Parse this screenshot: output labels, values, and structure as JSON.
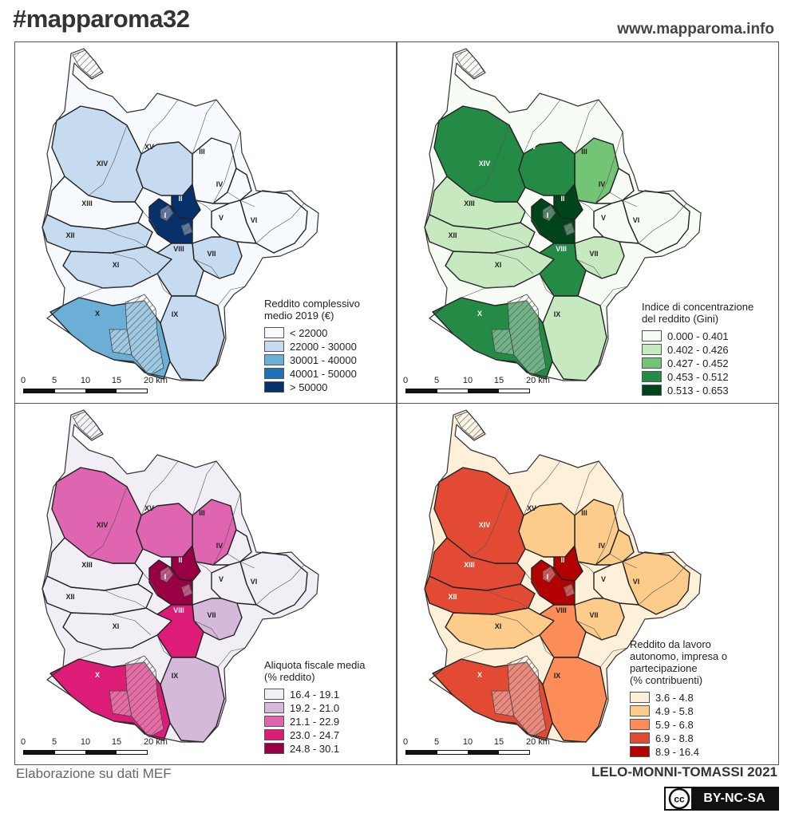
{
  "header": {
    "hashtag": "#mapparoma32",
    "website": "www.mapparoma.info"
  },
  "footer": {
    "source": "Elaborazione su dati MEF",
    "authors": "LELO-MONNI-TOMASSI 2021",
    "license": "BY-NC-SA",
    "license_icon": "cc-icon"
  },
  "scale_bar": {
    "labels": [
      "0",
      "5",
      "10",
      "15",
      "20 km"
    ]
  },
  "municipi": [
    "I",
    "II",
    "III",
    "IV",
    "V",
    "VI",
    "VII",
    "VIII",
    "IX",
    "X",
    "XI",
    "XII",
    "XIII",
    "XIV",
    "XV"
  ],
  "maps": [
    {
      "id": "reddito",
      "legend_title": [
        "Reddito complessivo",
        "medio 2019 (€)"
      ],
      "classes": [
        {
          "label": "< 22000",
          "color": "#f7fbff"
        },
        {
          "label": "22000 - 30000",
          "color": "#c6dbef"
        },
        {
          "label": "30001 - 40000",
          "color": "#6baed6"
        },
        {
          "label": "40001 - 50000",
          "color": "#2171b5"
        },
        {
          "label": "> 50000",
          "color": "#08306b"
        }
      ],
      "municipio_class": {
        "I": 4,
        "II": 4,
        "III": 0,
        "IV": 0,
        "V": 0,
        "VI": 0,
        "VII": 1,
        "VIII": 1,
        "IX": 1,
        "X": 2,
        "XI": 1,
        "XII": 1,
        "XIII": 0,
        "XIV": 1,
        "XV": 1
      }
    },
    {
      "id": "gini",
      "legend_title": [
        "Indice di concentrazione",
        "del reddito (Gini)"
      ],
      "classes": [
        {
          "label": "0.000 - 0.401",
          "color": "#f7fcf5"
        },
        {
          "label": "0.402 - 0.426",
          "color": "#c7e9c0"
        },
        {
          "label": "0.427 - 0.452",
          "color": "#74c476"
        },
        {
          "label": "0.453 - 0.512",
          "color": "#238b45"
        },
        {
          "label": "0.513 - 0.653",
          "color": "#00441b"
        }
      ],
      "municipio_class": {
        "I": 4,
        "II": 4,
        "III": 2,
        "IV": 0,
        "V": 0,
        "VI": 0,
        "VII": 1,
        "VIII": 3,
        "IX": 1,
        "X": 3,
        "XI": 1,
        "XII": 1,
        "XIII": 1,
        "XIV": 3,
        "XV": 3
      }
    },
    {
      "id": "aliquota",
      "legend_title": [
        "Aliquota fiscale media",
        "(% reddito)"
      ],
      "classes": [
        {
          "label": "16.4 - 19.1",
          "color": "#f1eef6"
        },
        {
          "label": "19.2 - 21.0",
          "color": "#d4b9da"
        },
        {
          "label": "21.1 - 22.9",
          "color": "#df65b0"
        },
        {
          "label": "23.0 - 24.7",
          "color": "#dd1c77"
        },
        {
          "label": "24.8 - 30.1",
          "color": "#980043"
        }
      ],
      "municipio_class": {
        "I": 4,
        "II": 4,
        "III": 2,
        "IV": 0,
        "V": 0,
        "VI": 0,
        "VII": 1,
        "VIII": 3,
        "IX": 1,
        "X": 3,
        "XI": 0,
        "XII": 0,
        "XIII": 0,
        "XIV": 2,
        "XV": 2
      }
    },
    {
      "id": "autonomo",
      "legend_title": [
        "Reddito da lavoro",
        "autonomo, impresa o",
        "partecipazione",
        "(% contribuenti)"
      ],
      "classes": [
        {
          "label": "3.6 - 4.8",
          "color": "#fef0d9"
        },
        {
          "label": "4.9 - 5.8",
          "color": "#fdcc8a"
        },
        {
          "label": "5.9 - 6.8",
          "color": "#fc8d59"
        },
        {
          "label": "6.9 - 8.8",
          "color": "#e34a33"
        },
        {
          "label": "8.9 - 16.4",
          "color": "#b30000"
        }
      ],
      "municipio_class": {
        "I": 4,
        "II": 4,
        "III": 1,
        "IV": 1,
        "V": 0,
        "VI": 1,
        "VII": 1,
        "VIII": 2,
        "IX": 2,
        "X": 3,
        "XI": 1,
        "XII": 3,
        "XIII": 3,
        "XIV": 3,
        "XV": 1
      }
    }
  ]
}
